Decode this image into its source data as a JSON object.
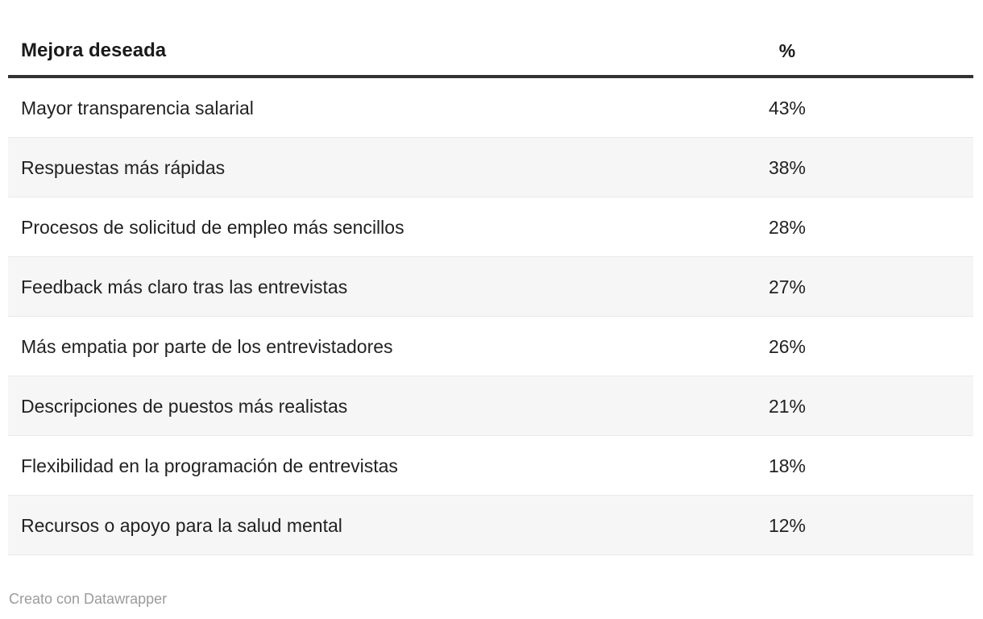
{
  "table": {
    "header": {
      "label": "Mejora deseada",
      "value_label": "%"
    },
    "rows": [
      {
        "label": "Mayor transparencia salarial",
        "value": "43%"
      },
      {
        "label": "Respuestas más rápidas",
        "value": "38%"
      },
      {
        "label": "Procesos de solicitud de empleo más sencillos",
        "value": "28%"
      },
      {
        "label": "Feedback más claro tras las entrevistas",
        "value": "27%"
      },
      {
        "label": "Más empatia por parte de los entrevistadores",
        "value": "26%"
      },
      {
        "label": "Descripciones de puestos más realistas",
        "value": "21%"
      },
      {
        "label": "Flexibilidad en la programación de entrevistas",
        "value": "18%"
      },
      {
        "label": "Recursos o apoyo para la salud mental",
        "value": "12%"
      }
    ]
  },
  "footer": {
    "attribution": "Creato con Datawrapper"
  },
  "colors": {
    "header_rule": "#333333",
    "zebra_row": "#f6f6f6",
    "row_divider": "#e9e9e9",
    "text": "#222222",
    "muted_text": "#9b9b9b"
  },
  "chart_data": {
    "type": "table",
    "columns": [
      "Mejora deseada",
      "%"
    ],
    "categories": [
      "Mayor transparencia salarial",
      "Respuestas más rápidas",
      "Procesos de solicitud de empleo más sencillos",
      "Feedback más claro tras las entrevistas",
      "Más empatia por parte de los entrevistadores",
      "Descripciones de puestos más realistas",
      "Flexibilidad en la programación de entrevistas",
      "Recursos o apoyo para la salud mental"
    ],
    "values": [
      43,
      38,
      28,
      27,
      26,
      21,
      18,
      12
    ],
    "title": "",
    "xlabel": "Mejora deseada",
    "ylabel": "%",
    "layout_hints": {
      "zebra_striping": true,
      "value_column_alignment": "center",
      "sorted": "descending"
    },
    "attribution": "Creato con Datawrapper"
  }
}
